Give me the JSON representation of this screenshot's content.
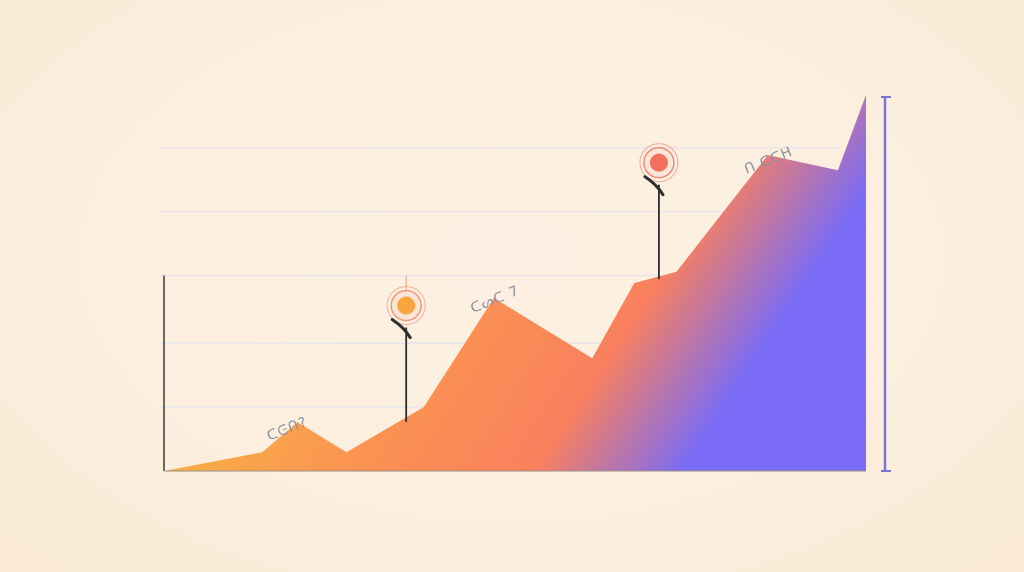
{
  "chart_data": {
    "type": "area",
    "title": "",
    "xlabel": "",
    "ylabel": "",
    "grid": true,
    "legend": "none",
    "xlim": [
      0,
      100
    ],
    "ylim": [
      0,
      100
    ],
    "series": [
      {
        "x": [
          0,
          14,
          19,
          26,
          37,
          47,
          61,
          67,
          73,
          86,
          96,
          100
        ],
        "y": [
          0,
          5,
          13,
          5,
          17,
          46,
          30,
          50,
          53,
          84,
          80,
          100
        ]
      }
    ],
    "gradient": [
      "#f9b043",
      "#fd9250",
      "#fb7f5c",
      "#7a6af7"
    ],
    "markers": [
      {
        "x": 34.5,
        "y": 44,
        "label": "",
        "color": "#f8a53f",
        "ring": "#f08a6a"
      },
      {
        "x": 70.5,
        "y": 82,
        "label": "",
        "color": "#f4705e",
        "ring": "#ee7a66"
      }
    ],
    "annotations": [
      {
        "text": "ᑕᕮᑎ?",
        "x": 15,
        "y": 8
      },
      {
        "text": "ᑕᔕᑕ 7",
        "x": 44,
        "y": 42
      },
      {
        "text": "ᑎ ᑕᑕᕼ",
        "x": 83,
        "y": 79
      }
    ],
    "colors": {
      "grid": "#e9e4ea",
      "axis": "#3b3b3b",
      "bracket": "#7d74d9",
      "stem": "#2e2e2e"
    }
  }
}
